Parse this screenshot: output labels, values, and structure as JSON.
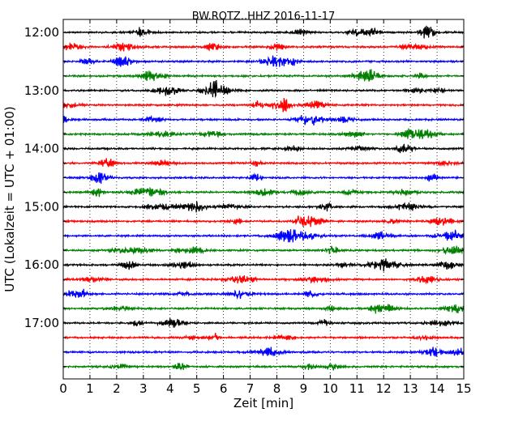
{
  "chart_data": {
    "type": "line",
    "title": "BW.ROTZ..HHZ 2016-11-17",
    "xlabel": "Zeit  [min]",
    "ylabel": "UTC (Lokalzeit = UTC + 01:00)",
    "xlim": [
      0,
      15
    ],
    "x_ticks": [
      "0",
      "1",
      "2",
      "3",
      "4",
      "5",
      "6",
      "7",
      "8",
      "9",
      "10",
      "11",
      "12",
      "13",
      "14",
      "15"
    ],
    "y_ticks": [
      "12:00",
      "13:00",
      "14:00",
      "15:00",
      "16:00",
      "17:00"
    ],
    "grid": "vertical dotted",
    "trace_colors": [
      "#000000",
      "#ff0000",
      "#0000ff",
      "#008000"
    ],
    "series": [
      {
        "offset": "12:00",
        "color": "#000000"
      },
      {
        "offset": "12:15",
        "color": "#ff0000"
      },
      {
        "offset": "12:30",
        "color": "#0000ff"
      },
      {
        "offset": "12:45",
        "color": "#008000"
      },
      {
        "offset": "13:00",
        "color": "#000000"
      },
      {
        "offset": "13:15",
        "color": "#ff0000"
      },
      {
        "offset": "13:30",
        "color": "#0000ff"
      },
      {
        "offset": "13:45",
        "color": "#008000"
      },
      {
        "offset": "14:00",
        "color": "#000000"
      },
      {
        "offset": "14:15",
        "color": "#ff0000"
      },
      {
        "offset": "14:30",
        "color": "#0000ff"
      },
      {
        "offset": "14:45",
        "color": "#008000"
      },
      {
        "offset": "15:00",
        "color": "#000000"
      },
      {
        "offset": "15:15",
        "color": "#ff0000"
      },
      {
        "offset": "15:30",
        "color": "#0000ff"
      },
      {
        "offset": "15:45",
        "color": "#008000"
      },
      {
        "offset": "16:00",
        "color": "#000000"
      },
      {
        "offset": "16:15",
        "color": "#ff0000"
      },
      {
        "offset": "16:30",
        "color": "#0000ff"
      },
      {
        "offset": "16:45",
        "color": "#008000"
      },
      {
        "offset": "17:00",
        "color": "#000000"
      },
      {
        "offset": "17:15",
        "color": "#ff0000"
      },
      {
        "offset": "17:30",
        "color": "#0000ff"
      },
      {
        "offset": "17:45",
        "color": "#008000"
      }
    ]
  }
}
